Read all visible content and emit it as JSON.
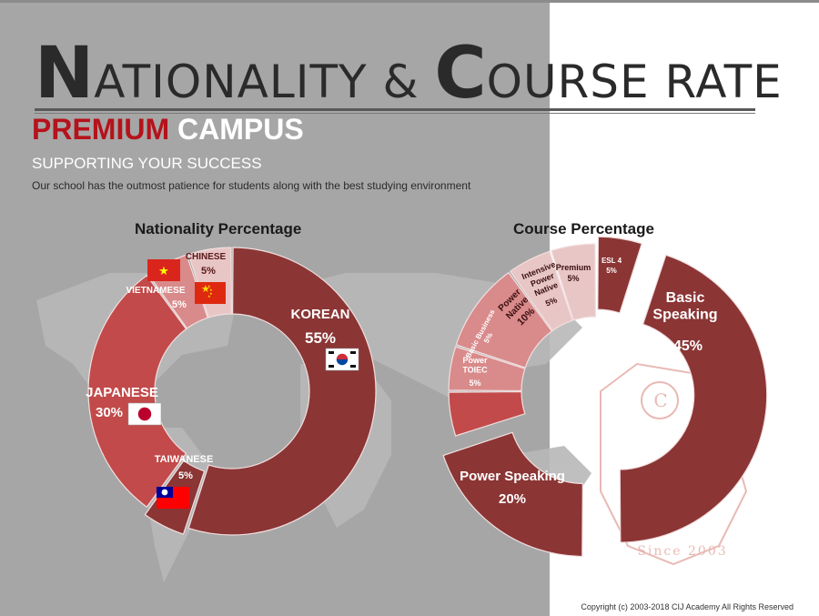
{
  "title": {
    "initial1": "N",
    "rest1": "ATIONALITY",
    "amp": "&",
    "initial2": "C",
    "rest2": "OURSE RATE"
  },
  "subtitle": {
    "part1": "PREMIUM",
    "part2": "CAMPUS"
  },
  "tagline": "SUPPORTING YOUR SUCCESS",
  "description": "Our school has the outmost patience for students along with the best studying environment",
  "copyright": "Copyright (c) 2003-2018 CIJ Academy All Rights Reserved",
  "watermark": {
    "text": "Since 2003"
  },
  "colors": {
    "dark": "#8b3535",
    "mid": "#c24a4a",
    "light": "#d98a8a",
    "pale": "#e8c6c6",
    "accent": "#b5121b"
  },
  "chart_data": [
    {
      "type": "pie",
      "title": "Nationality Percentage",
      "series": [
        {
          "name": "KOREAN",
          "value": 55,
          "label": "55%",
          "flag": "south-korea"
        },
        {
          "name": "TAIWANESE",
          "value": 5,
          "label": "5%",
          "flag": "taiwan"
        },
        {
          "name": "JAPANESE",
          "value": 30,
          "label": "30%",
          "flag": "japan"
        },
        {
          "name": "VIETNAMESE",
          "value": 5,
          "label": "5%",
          "flag": "vietnam"
        },
        {
          "name": "CHINESE",
          "value": 5,
          "label": "5%",
          "flag": "china"
        }
      ]
    },
    {
      "type": "pie",
      "title": "Course Percentage",
      "series": [
        {
          "name": "Basic Speaking",
          "value": 45,
          "label": "45%"
        },
        {
          "name": "Power Speaking",
          "value": 20,
          "label": "20%"
        },
        {
          "name": "Power TOIEC",
          "value": 5,
          "label": "5%"
        },
        {
          "name": "Basic Business",
          "value": 5,
          "label": "5%"
        },
        {
          "name": "Power Native",
          "value": 10,
          "label": "10%"
        },
        {
          "name": "Intensive Power Native",
          "value": 5,
          "label": "5%"
        },
        {
          "name": "Premium",
          "value": 5,
          "label": "5%"
        },
        {
          "name": "ESL 4",
          "value": 5,
          "label": "5%"
        }
      ]
    }
  ]
}
